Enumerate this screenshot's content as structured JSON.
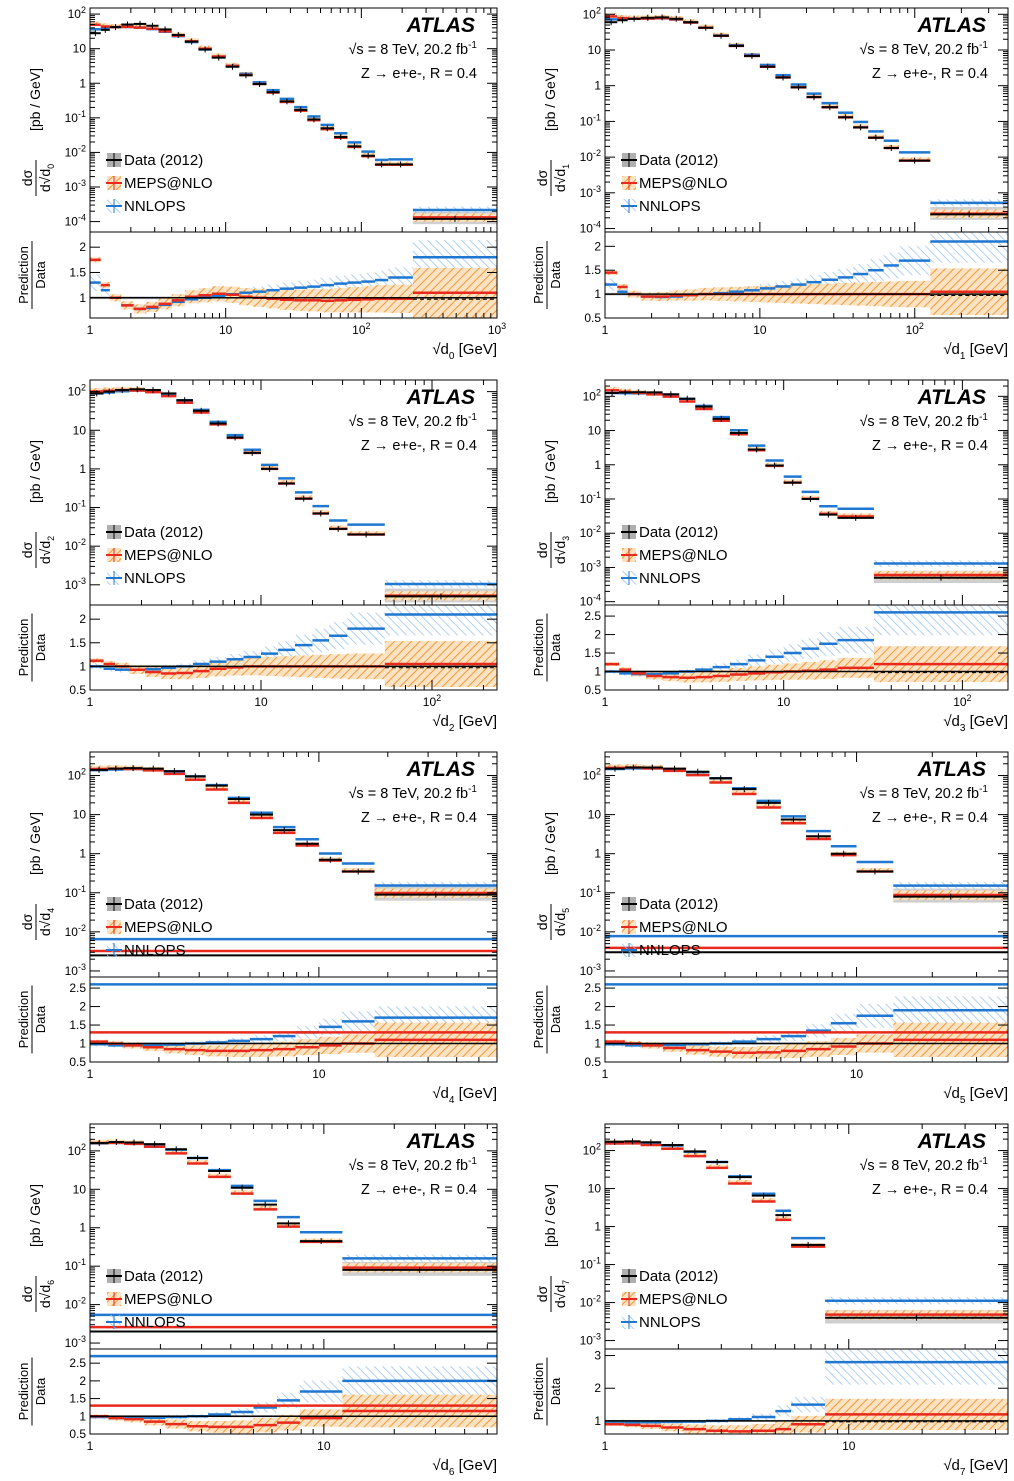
{
  "atlas_label": "ATLAS",
  "energy_prefix": "s = 8 TeV, 20.2 fb",
  "lumi_exp": "-1",
  "channel_label": "Z → e+e-, R = 0.4",
  "ylabel": {
    "num": "dσ",
    "den": "d",
    "units": "[pb / GeV]"
  },
  "ratio_label": {
    "num": "Prediction",
    "den": "Data"
  },
  "xunit": "[GeV]",
  "legend": [
    {
      "label": "Data (2012)",
      "color": "#000000"
    },
    {
      "label": "MEPS@NLO",
      "color": "#e8291c"
    },
    {
      "label": "NNLOPS",
      "color": "#1f77d0"
    }
  ],
  "colors": {
    "data": "#000000",
    "meps": "#e8291c",
    "meps_band": "#f0a040",
    "nnlops": "#1f77d0",
    "nnlops_band": "#7fb3e6"
  },
  "chart_data": [
    {
      "type": "line",
      "xlabel": "√d0 [GeV]",
      "xscale": "log",
      "yscale": "log",
      "xlim": [
        1,
        1000
      ],
      "ylim": [
        5e-05,
        150
      ],
      "ratio_ylim": [
        0.6,
        2.3
      ],
      "ratio_ticks": [
        1,
        1.5,
        2
      ],
      "xticks": [
        {
          "v": 1,
          "t": "1"
        },
        {
          "v": 10,
          "t": "10"
        },
        {
          "v": 100,
          "t": "102"
        },
        {
          "v": 1000,
          "t": "103"
        }
      ],
      "yticks": [
        {
          "v": 0.0001,
          "t": "10-4"
        },
        {
          "v": 0.001,
          "t": "10-3"
        },
        {
          "v": 0.01,
          "t": "10-2"
        },
        {
          "v": 0.1,
          "t": "10-1"
        },
        {
          "v": 1,
          "t": "1"
        },
        {
          "v": 10,
          "t": "10"
        },
        {
          "v": 100,
          "t": "102"
        }
      ],
      "edges": [
        1,
        1.2,
        1.4,
        1.7,
        2.1,
        2.6,
        3.2,
        4,
        5,
        6.3,
        7.9,
        10,
        12.6,
        15.8,
        20,
        25,
        32,
        40,
        50,
        63,
        79,
        100,
        126,
        158,
        240,
        1000
      ],
      "data": [
        28,
        35,
        42,
        50,
        52,
        46,
        36,
        25,
        16,
        9.5,
        5.5,
        3,
        1.7,
        0.95,
        0.55,
        0.3,
        0.17,
        0.09,
        0.05,
        0.028,
        0.015,
        0.008,
        0.0045,
        0.0045,
        0.00012
      ],
      "meps_ratio": [
        1.75,
        1.25,
        1.0,
        0.85,
        0.78,
        0.82,
        0.88,
        0.95,
        1.02,
        1.05,
        1.08,
        1.06,
        1.02,
        1.0,
        0.98,
        0.96,
        0.95,
        0.95,
        0.94,
        0.95,
        0.96,
        0.97,
        0.98,
        0.98,
        1.1
      ],
      "nnlops_ratio": [
        1.3,
        1.15,
        1.0,
        0.85,
        0.78,
        0.8,
        0.86,
        0.92,
        0.97,
        1.0,
        1.03,
        1.07,
        1.1,
        1.12,
        1.15,
        1.18,
        1.2,
        1.22,
        1.25,
        1.28,
        1.3,
        1.32,
        1.35,
        1.4,
        1.8
      ]
    },
    {
      "type": "line",
      "xlabel": "√d1 [GeV]",
      "xscale": "log",
      "yscale": "log",
      "xlim": [
        1,
        400
      ],
      "ylim": [
        8e-05,
        150
      ],
      "ratio_ylim": [
        0.5,
        2.3
      ],
      "ratio_ticks": [
        0.5,
        1,
        1.5,
        2
      ],
      "xticks": [
        {
          "v": 1,
          "t": "1"
        },
        {
          "v": 10,
          "t": "10"
        },
        {
          "v": 100,
          "t": "102"
        }
      ],
      "yticks": [
        {
          "v": 0.0001,
          "t": "10-4"
        },
        {
          "v": 0.001,
          "t": "10-3"
        },
        {
          "v": 0.01,
          "t": "10-2"
        },
        {
          "v": 0.1,
          "t": "10-1"
        },
        {
          "v": 1,
          "t": "1"
        },
        {
          "v": 10,
          "t": "10"
        },
        {
          "v": 100,
          "t": "102"
        }
      ],
      "edges": [
        1,
        1.2,
        1.4,
        1.7,
        2.1,
        2.6,
        3.2,
        4,
        5,
        6.3,
        7.9,
        10,
        12.6,
        15.8,
        20,
        25,
        32,
        40,
        50,
        63,
        79,
        126,
        400
      ],
      "data": [
        60,
        68,
        75,
        80,
        82,
        75,
        60,
        42,
        25,
        13,
        6.8,
        3.4,
        1.7,
        0.9,
        0.48,
        0.25,
        0.13,
        0.068,
        0.035,
        0.018,
        0.008,
        0.00025
      ],
      "meps_ratio": [
        1.45,
        1.15,
        1.0,
        0.95,
        0.95,
        0.97,
        0.98,
        1.0,
        1.0,
        1.0,
        1.0,
        1.0,
        1.0,
        1.0,
        1.0,
        1.0,
        1.0,
        1.0,
        1.0,
        1.0,
        1.0,
        1.05
      ],
      "nnlops_ratio": [
        1.2,
        1.05,
        1.0,
        0.95,
        0.94,
        0.95,
        0.98,
        1.0,
        1.02,
        1.05,
        1.08,
        1.12,
        1.16,
        1.2,
        1.25,
        1.3,
        1.35,
        1.42,
        1.5,
        1.6,
        1.7,
        2.1
      ]
    },
    {
      "type": "line",
      "xlabel": "√d2 [GeV]",
      "xscale": "log",
      "yscale": "log",
      "xlim": [
        1,
        240
      ],
      "ylim": [
        0.0003,
        200
      ],
      "ratio_ylim": [
        0.5,
        2.3
      ],
      "ratio_ticks": [
        0.5,
        1,
        1.5,
        2
      ],
      "xticks": [
        {
          "v": 1,
          "t": "1"
        },
        {
          "v": 10,
          "t": "10"
        },
        {
          "v": 100,
          "t": "102"
        }
      ],
      "yticks": [
        {
          "v": 0.001,
          "t": "10-3"
        },
        {
          "v": 0.01,
          "t": "10-2"
        },
        {
          "v": 0.1,
          "t": "10-1"
        },
        {
          "v": 1,
          "t": "1"
        },
        {
          "v": 10,
          "t": "10"
        },
        {
          "v": 100,
          "t": "102"
        }
      ],
      "edges": [
        1,
        1.2,
        1.4,
        1.7,
        2.1,
        2.6,
        3.2,
        4,
        5,
        6.3,
        7.9,
        10,
        12.6,
        15.8,
        20,
        25,
        32,
        53,
        240
      ],
      "data": [
        90,
        100,
        110,
        115,
        110,
        90,
        60,
        32,
        15,
        6.5,
        2.6,
        1.0,
        0.42,
        0.17,
        0.07,
        0.028,
        0.02,
        0.0005
      ],
      "meps_ratio": [
        1.12,
        1.05,
        1.0,
        0.93,
        0.88,
        0.85,
        0.86,
        0.9,
        0.95,
        0.98,
        1.0,
        1.0,
        1.0,
        1.0,
        1.0,
        1.0,
        1.0,
        1.05
      ],
      "nnlops_ratio": [
        1.0,
        0.95,
        0.93,
        0.93,
        0.94,
        0.97,
        1.0,
        1.05,
        1.1,
        1.15,
        1.2,
        1.27,
        1.35,
        1.45,
        1.55,
        1.65,
        1.8,
        2.1
      ]
    },
    {
      "type": "line",
      "xlabel": "√d3 [GeV]",
      "xscale": "log",
      "yscale": "log",
      "xlim": [
        1,
        180
      ],
      "ylim": [
        8e-05,
        300
      ],
      "ratio_ylim": [
        0.5,
        2.8
      ],
      "ratio_ticks": [
        0.5,
        1,
        1.5,
        2,
        2.5
      ],
      "xticks": [
        {
          "v": 1,
          "t": "1"
        },
        {
          "v": 10,
          "t": "10"
        },
        {
          "v": 100,
          "t": "102"
        }
      ],
      "yticks": [
        {
          "v": 0.0001,
          "t": "10-4"
        },
        {
          "v": 0.001,
          "t": "10-3"
        },
        {
          "v": 0.01,
          "t": "10-2"
        },
        {
          "v": 0.1,
          "t": "10-1"
        },
        {
          "v": 1,
          "t": "1"
        },
        {
          "v": 10,
          "t": "10"
        },
        {
          "v": 100,
          "t": "102"
        }
      ],
      "edges": [
        1,
        1.2,
        1.4,
        1.7,
        2.1,
        2.6,
        3.2,
        4,
        5,
        6.3,
        7.9,
        10,
        12.6,
        15.8,
        20,
        32,
        180
      ],
      "data": [
        125,
        130,
        132,
        130,
        115,
        85,
        50,
        22,
        8.5,
        2.8,
        0.95,
        0.3,
        0.1,
        0.035,
        0.028,
        0.0005
      ],
      "meps_ratio": [
        1.2,
        1.05,
        0.95,
        0.88,
        0.85,
        0.83,
        0.85,
        0.88,
        0.92,
        0.95,
        0.98,
        1.0,
        1.02,
        1.05,
        1.1,
        1.2
      ],
      "nnlops_ratio": [
        1.0,
        0.95,
        0.93,
        0.93,
        0.95,
        1.0,
        1.05,
        1.12,
        1.2,
        1.3,
        1.4,
        1.5,
        1.62,
        1.75,
        1.85,
        2.6
      ]
    },
    {
      "type": "line",
      "xlabel": "√d4 [GeV]",
      "xscale": "log",
      "yscale": "log",
      "xlim": [
        1,
        60
      ],
      "ylim": [
        0.0007,
        400
      ],
      "ratio_ylim": [
        0.5,
        2.8
      ],
      "ratio_ticks": [
        0.5,
        1,
        1.5,
        2,
        2.5
      ],
      "xticks": [
        {
          "v": 1,
          "t": "1"
        },
        {
          "v": 10,
          "t": "10"
        }
      ],
      "yticks": [
        {
          "v": 0.001,
          "t": "10-3"
        },
        {
          "v": 0.01,
          "t": "10-2"
        },
        {
          "v": 0.1,
          "t": "10-1"
        },
        {
          "v": 1,
          "t": "1"
        },
        {
          "v": 10,
          "t": "10"
        },
        {
          "v": 100,
          "t": "102"
        }
      ],
      "edges": [
        1,
        1.2,
        1.4,
        1.7,
        2.1,
        2.6,
        3.2,
        4,
        5,
        6.3,
        7.9,
        10,
        12.6,
        17.5,
        60
      ],
      "data": [
        140,
        150,
        155,
        150,
        130,
        95,
        55,
        25,
        10,
        4.0,
        1.8,
        0.7,
        0.35,
        0.09,
        0.0025
      ],
      "meps_ratio": [
        1.05,
        1.0,
        0.95,
        0.9,
        0.85,
        0.82,
        0.8,
        0.8,
        0.82,
        0.85,
        0.9,
        0.95,
        1.0,
        1.1,
        1.3
      ],
      "nnlops_ratio": [
        0.98,
        0.95,
        0.95,
        0.95,
        0.97,
        1.0,
        1.03,
        1.07,
        1.12,
        1.2,
        1.3,
        1.45,
        1.6,
        1.7,
        2.6
      ]
    },
    {
      "type": "line",
      "xlabel": "√d5 [GeV]",
      "xscale": "log",
      "yscale": "log",
      "xlim": [
        1,
        40
      ],
      "ylim": [
        0.0007,
        400
      ],
      "ratio_ylim": [
        0.5,
        2.8
      ],
      "ratio_ticks": [
        0.5,
        1,
        1.5,
        2,
        2.5
      ],
      "xticks": [
        {
          "v": 1,
          "t": "1"
        },
        {
          "v": 10,
          "t": "10"
        }
      ],
      "yticks": [
        {
          "v": 0.001,
          "t": "10-3"
        },
        {
          "v": 0.01,
          "t": "10-2"
        },
        {
          "v": 0.1,
          "t": "10-1"
        },
        {
          "v": 1,
          "t": "1"
        },
        {
          "v": 10,
          "t": "10"
        },
        {
          "v": 100,
          "t": "102"
        }
      ],
      "edges": [
        1,
        1.2,
        1.4,
        1.7,
        2.1,
        2.6,
        3.2,
        4,
        5,
        6.3,
        7.9,
        10,
        14,
        40
      ],
      "data": [
        150,
        160,
        160,
        150,
        125,
        85,
        45,
        20,
        7.5,
        2.8,
        1.0,
        0.35,
        0.08,
        0.003
      ],
      "meps_ratio": [
        1.05,
        1.0,
        0.95,
        0.88,
        0.82,
        0.78,
        0.75,
        0.76,
        0.8,
        0.85,
        0.92,
        1.0,
        1.1,
        1.3
      ],
      "nnlops_ratio": [
        0.98,
        0.95,
        0.95,
        0.96,
        0.98,
        1.0,
        1.05,
        1.12,
        1.2,
        1.35,
        1.55,
        1.75,
        1.9,
        2.6
      ]
    },
    {
      "type": "line",
      "xlabel": "√d6 [GeV]",
      "xscale": "log",
      "yscale": "log",
      "xlim": [
        1,
        55
      ],
      "ylim": [
        0.0007,
        500
      ],
      "ratio_ylim": [
        0.5,
        2.9
      ],
      "ratio_ticks": [
        0.5,
        1,
        1.5,
        2,
        2.5
      ],
      "xticks": [
        {
          "v": 1,
          "t": "1"
        },
        {
          "v": 10,
          "t": "10"
        }
      ],
      "yticks": [
        {
          "v": 0.001,
          "t": "10-3"
        },
        {
          "v": 0.01,
          "t": "10-2"
        },
        {
          "v": 0.1,
          "t": "10-1"
        },
        {
          "v": 1,
          "t": "1"
        },
        {
          "v": 10,
          "t": "10"
        },
        {
          "v": 100,
          "t": "102"
        }
      ],
      "edges": [
        1,
        1.2,
        1.4,
        1.7,
        2.1,
        2.6,
        3.2,
        4,
        5,
        6.3,
        7.9,
        12,
        55
      ],
      "data": [
        160,
        170,
        165,
        150,
        110,
        65,
        30,
        11,
        4.0,
        1.3,
        0.45,
        0.08,
        0.002
      ],
      "meps_ratio": [
        1.0,
        0.95,
        0.92,
        0.85,
        0.78,
        0.72,
        0.7,
        0.7,
        0.75,
        0.82,
        0.95,
        1.15,
        1.3
      ],
      "nnlops_ratio": [
        0.98,
        0.95,
        0.95,
        0.96,
        0.98,
        1.0,
        1.05,
        1.12,
        1.25,
        1.45,
        1.7,
        2.0,
        2.7
      ]
    },
    {
      "type": "line",
      "xlabel": "√d7 [GeV]",
      "xscale": "log",
      "yscale": "log",
      "xlim": [
        1,
        45
      ],
      "ylim": [
        0.0006,
        500
      ],
      "ratio_ylim": [
        0.6,
        3.2
      ],
      "ratio_ticks": [
        1,
        2,
        3
      ],
      "xticks": [
        {
          "v": 1,
          "t": "1"
        },
        {
          "v": 10,
          "t": "10"
        }
      ],
      "yticks": [
        {
          "v": 0.001,
          "t": "10-3"
        },
        {
          "v": 0.01,
          "t": "10-2"
        },
        {
          "v": 0.1,
          "t": "10-1"
        },
        {
          "v": 1,
          "t": "1"
        },
        {
          "v": 10,
          "t": "10"
        },
        {
          "v": 100,
          "t": "102"
        }
      ],
      "edges": [
        1,
        1.2,
        1.4,
        1.7,
        2.1,
        2.6,
        3.2,
        4,
        5,
        5.8,
        8,
        45
      ],
      "data": [
        170,
        175,
        165,
        140,
        95,
        50,
        20,
        6.5,
        2.0,
        0.33,
        0.004
      ],
      "meps_ratio": [
        0.9,
        0.88,
        0.85,
        0.8,
        0.75,
        0.7,
        0.68,
        0.7,
        0.75,
        0.9,
        1.2
      ],
      "nnlops_ratio": [
        0.98,
        0.96,
        0.96,
        0.97,
        0.98,
        1.0,
        1.05,
        1.12,
        1.3,
        1.5,
        2.8
      ]
    }
  ]
}
